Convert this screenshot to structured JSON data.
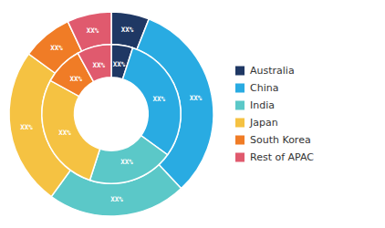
{
  "chart_data": {
    "type": "donut",
    "categories": [
      "Australia",
      "China",
      "India",
      "Japan",
      "South Korea",
      "Rest of APAC"
    ],
    "colors": [
      "#1f3864",
      "#29abe2",
      "#5bc8c8",
      "#f5c242",
      "#f07c26",
      "#e05a6e"
    ],
    "series": [
      {
        "values": [
          6,
          32,
          22,
          25,
          8,
          7
        ],
        "value_labels": [
          "XX%",
          "XX%",
          "XX%",
          "XX%",
          "XX%",
          "XX%"
        ]
      },
      {
        "values": [
          5,
          30,
          20,
          28,
          9,
          8
        ],
        "value_labels": [
          "XX%",
          "XX%",
          "XX%",
          "XX%",
          "XX%",
          "XX%"
        ]
      }
    ],
    "data_labels": true,
    "legend": "right"
  }
}
